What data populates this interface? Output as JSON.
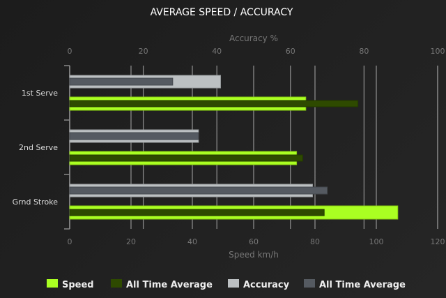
{
  "chart_data": {
    "type": "bar",
    "orientation": "horizontal",
    "title": "AVERAGE SPEED / ACCURACY",
    "categories": [
      "1st Serve",
      "2nd Serve",
      "Grnd Stroke"
    ],
    "x_bottom": {
      "label": "Speed km/h",
      "range": [
        0,
        120
      ],
      "ticks": [
        0,
        20,
        40,
        60,
        80,
        100,
        120
      ]
    },
    "x_top": {
      "label": "Accuracy %",
      "range": [
        0,
        100
      ],
      "ticks": [
        0,
        20,
        40,
        60,
        80,
        100
      ]
    },
    "grid": true,
    "legend_position": "bottom",
    "series": [
      {
        "name": "Speed",
        "axis": "bottom",
        "color": "#aaff22",
        "values": [
          77,
          74,
          107
        ]
      },
      {
        "name": "All Time Average",
        "axis": "bottom",
        "color": "#2e4a00",
        "values": [
          94,
          76,
          83
        ]
      },
      {
        "name": "Accuracy",
        "axis": "top",
        "color": "#bcc0c2",
        "values": [
          41,
          35,
          66
        ]
      },
      {
        "name": "All Time Average",
        "axis": "top",
        "color": "#555a61",
        "values": [
          28,
          35,
          70
        ]
      }
    ]
  }
}
